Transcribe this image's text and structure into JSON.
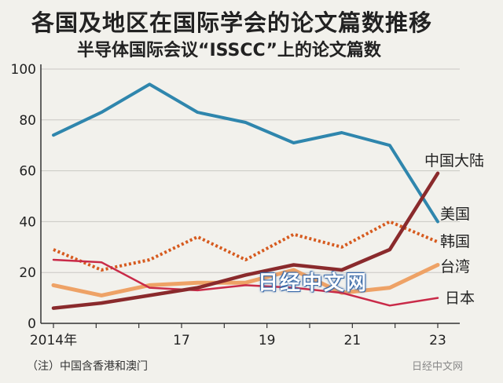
{
  "header": {
    "title": "各国及地区在国际学会的论文篇数推移",
    "subtitle": "半导体国际会议“ISSCC”上的论文篇数"
  },
  "note": "（注）中国含香港和澳门",
  "watermark": "日经中文网",
  "corner_mark": "日经中文网",
  "chart_data": {
    "type": "line",
    "x": [
      2014,
      2015,
      2016,
      2017,
      2018,
      2019,
      2020,
      2021,
      2022,
      2023
    ],
    "x_tick_values": [
      2014,
      2017,
      2019,
      2021,
      2023
    ],
    "x_tick_labels": [
      "2014年",
      "17",
      "19",
      "21",
      "23"
    ],
    "ylim": [
      0,
      100
    ],
    "y_ticks": [
      0,
      20,
      40,
      60,
      80,
      100
    ],
    "y_tick_labels": [
      "0",
      "20",
      "40",
      "60",
      "80",
      "100"
    ],
    "xlim": [
      2014,
      2023
    ],
    "series": [
      {
        "name": "美国",
        "color": "#2f86ad",
        "style": "solid",
        "width": 4,
        "values": [
          74,
          83,
          94,
          83,
          79,
          71,
          75,
          70,
          40,
          null
        ]
      },
      {
        "name": "韩国",
        "color": "#d65a1e",
        "style": "dotted",
        "width": 4,
        "values": [
          29,
          21,
          25,
          34,
          25,
          35,
          30,
          40,
          32,
          null
        ]
      },
      {
        "name": "台湾",
        "color": "#eea266",
        "style": "solid",
        "width": 5,
        "values": [
          15,
          11,
          15,
          16,
          16,
          21,
          12,
          14,
          23,
          null
        ]
      },
      {
        "name": "日本",
        "color": "#c92a48",
        "style": "solid",
        "width": 2.5,
        "values": [
          25,
          24,
          14,
          13,
          15,
          14,
          12,
          7,
          10,
          null
        ]
      },
      {
        "name": "中国大陆",
        "color": "#8a2a2c",
        "style": "solid",
        "width": 4.5,
        "values": [
          6,
          8,
          11,
          14,
          19,
          23,
          21,
          29,
          59,
          null
        ]
      }
    ]
  }
}
